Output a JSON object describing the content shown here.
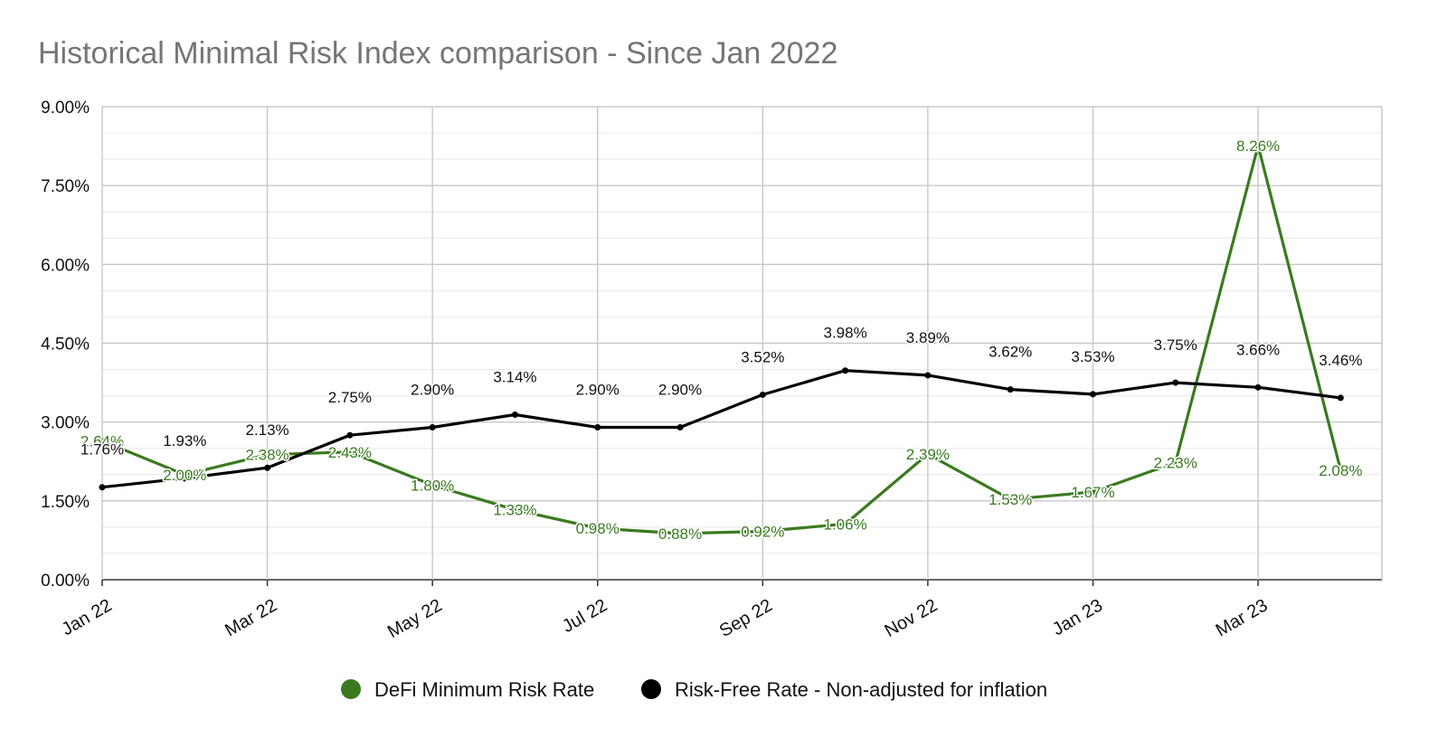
{
  "chart_data": {
    "type": "line",
    "title": "Historical Minimal Risk Index comparison - Since Jan 2022",
    "xlabel": "",
    "ylabel": "",
    "ylim": [
      0,
      9
    ],
    "y_ticks": [
      "0.00%",
      "1.50%",
      "3.00%",
      "4.50%",
      "6.00%",
      "7.50%",
      "9.00%"
    ],
    "x_tick_labels": [
      "Jan 22",
      "Mar 22",
      "May 22",
      "Jul 22",
      "Sep 22",
      "Nov 22",
      "Jan 23",
      "Mar 23"
    ],
    "categories": [
      "Jan 22",
      "Feb 22",
      "Mar 22",
      "Apr 22",
      "May 22",
      "Jun 22",
      "Jul 22",
      "Aug 22",
      "Sep 22",
      "Oct 22",
      "Nov 22",
      "Dec 22",
      "Jan 23",
      "Feb 23",
      "Mar 23",
      "Apr 23"
    ],
    "series": [
      {
        "name": "DeFi Minimum Risk Rate",
        "color": "#3a7a1f",
        "values": [
          2.64,
          2.0,
          2.38,
          2.43,
          1.8,
          1.33,
          0.98,
          0.88,
          0.92,
          1.06,
          2.39,
          1.53,
          1.67,
          2.23,
          8.26,
          2.08
        ],
        "labels": [
          "2.64%",
          "2.00%",
          "2.38%",
          "2.43%",
          "1.80%",
          "1.33%",
          "0.98%",
          "0.88%",
          "0.92%",
          "1.06%",
          "2.39%",
          "1.53%",
          "1.67%",
          "2.23%",
          "8.26%",
          "2.08%"
        ]
      },
      {
        "name": "Risk-Free Rate - Non-adjusted for inflation",
        "color": "#000000",
        "values": [
          1.76,
          1.93,
          2.13,
          2.75,
          2.9,
          3.14,
          2.9,
          2.9,
          3.52,
          3.98,
          3.89,
          3.62,
          3.53,
          3.75,
          3.66,
          3.46
        ],
        "labels": [
          "1.76%",
          "1.93%",
          "2.13%",
          "2.75%",
          "2.90%",
          "3.14%",
          "2.90%",
          "2.90%",
          "3.52%",
          "3.98%",
          "3.89%",
          "3.62%",
          "3.53%",
          "3.75%",
          "3.66%",
          "3.46%"
        ]
      }
    ],
    "legend": "bottom-center",
    "grid": true
  }
}
